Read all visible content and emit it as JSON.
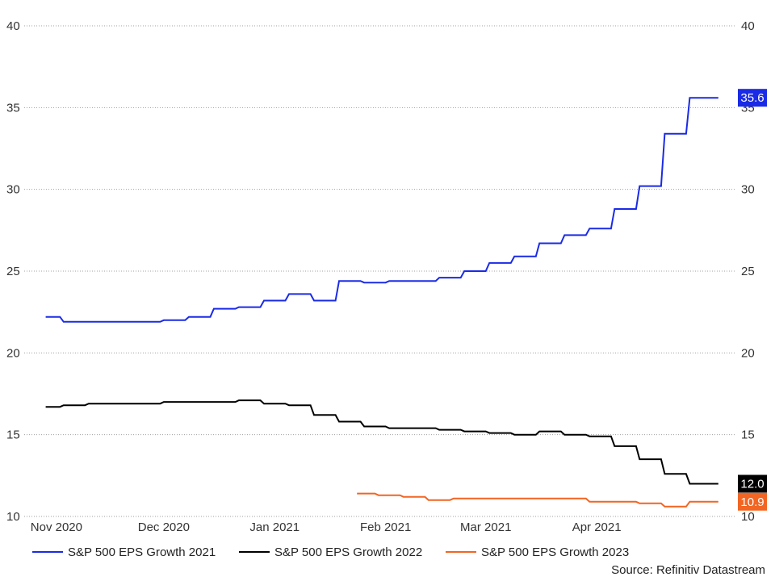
{
  "chart_data": {
    "type": "line",
    "ylim": [
      10,
      40
    ],
    "yticks": [
      10,
      15,
      20,
      25,
      30,
      35,
      40
    ],
    "xlim": [
      "2020-10-23",
      "2021-05-10"
    ],
    "xticks": [
      {
        "date": "2020-11-01",
        "label": "Nov 2020"
      },
      {
        "date": "2020-12-01",
        "label": "Dec 2020"
      },
      {
        "date": "2021-01-01",
        "label": "Jan 2021"
      },
      {
        "date": "2021-02-01",
        "label": "Feb 2021"
      },
      {
        "date": "2021-03-01",
        "label": "Mar 2021"
      },
      {
        "date": "2021-04-01",
        "label": "Apr 2021"
      }
    ],
    "grid": true,
    "legend": "bottom",
    "series": [
      {
        "name": "S&P 500 EPS Growth 2021",
        "color": "#1a2be6",
        "end_label": "35.6",
        "points": [
          [
            "2020-10-29",
            22.2
          ],
          [
            "2020-11-02",
            22.2
          ],
          [
            "2020-11-03",
            21.9
          ],
          [
            "2020-11-09",
            21.9
          ],
          [
            "2020-11-10",
            21.9
          ],
          [
            "2020-11-30",
            21.9
          ],
          [
            "2020-12-01",
            22.0
          ],
          [
            "2020-12-07",
            22.0
          ],
          [
            "2020-12-08",
            22.2
          ],
          [
            "2020-12-14",
            22.2
          ],
          [
            "2020-12-15",
            22.7
          ],
          [
            "2020-12-21",
            22.7
          ],
          [
            "2020-12-22",
            22.8
          ],
          [
            "2020-12-28",
            22.8
          ],
          [
            "2020-12-29",
            23.2
          ],
          [
            "2021-01-04",
            23.2
          ],
          [
            "2021-01-05",
            23.6
          ],
          [
            "2021-01-11",
            23.6
          ],
          [
            "2021-01-12",
            23.2
          ],
          [
            "2021-01-18",
            23.2
          ],
          [
            "2021-01-19",
            24.4
          ],
          [
            "2021-01-25",
            24.4
          ],
          [
            "2021-01-26",
            24.3
          ],
          [
            "2021-02-01",
            24.3
          ],
          [
            "2021-02-02",
            24.4
          ],
          [
            "2021-02-15",
            24.4
          ],
          [
            "2021-02-16",
            24.6
          ],
          [
            "2021-02-22",
            24.6
          ],
          [
            "2021-02-23",
            25.0
          ],
          [
            "2021-03-01",
            25.0
          ],
          [
            "2021-03-02",
            25.5
          ],
          [
            "2021-03-08",
            25.5
          ],
          [
            "2021-03-09",
            25.9
          ],
          [
            "2021-03-15",
            25.9
          ],
          [
            "2021-03-16",
            26.7
          ],
          [
            "2021-03-22",
            26.7
          ],
          [
            "2021-03-23",
            27.2
          ],
          [
            "2021-03-29",
            27.2
          ],
          [
            "2021-03-30",
            27.6
          ],
          [
            "2021-04-05",
            27.6
          ],
          [
            "2021-04-06",
            28.8
          ],
          [
            "2021-04-12",
            28.8
          ],
          [
            "2021-04-13",
            30.2
          ],
          [
            "2021-04-19",
            30.2
          ],
          [
            "2021-04-20",
            33.4
          ],
          [
            "2021-04-26",
            33.4
          ],
          [
            "2021-04-27",
            35.6
          ],
          [
            "2021-05-05",
            35.6
          ]
        ]
      },
      {
        "name": "S&P 500 EPS Growth 2022",
        "color": "#000000",
        "end_label": "12.0",
        "points": [
          [
            "2020-10-29",
            16.7
          ],
          [
            "2020-11-02",
            16.7
          ],
          [
            "2020-11-03",
            16.8
          ],
          [
            "2020-11-09",
            16.8
          ],
          [
            "2020-11-10",
            16.9
          ],
          [
            "2020-11-16",
            16.9
          ],
          [
            "2020-11-17",
            16.9
          ],
          [
            "2020-11-23",
            16.9
          ],
          [
            "2020-11-24",
            16.9
          ],
          [
            "2020-11-30",
            16.9
          ],
          [
            "2020-12-01",
            17.0
          ],
          [
            "2020-12-14",
            17.0
          ],
          [
            "2020-12-15",
            17.0
          ],
          [
            "2020-12-21",
            17.0
          ],
          [
            "2020-12-22",
            17.1
          ],
          [
            "2020-12-28",
            17.1
          ],
          [
            "2020-12-29",
            16.9
          ],
          [
            "2021-01-04",
            16.9
          ],
          [
            "2021-01-05",
            16.8
          ],
          [
            "2021-01-11",
            16.8
          ],
          [
            "2021-01-12",
            16.2
          ],
          [
            "2021-01-18",
            16.2
          ],
          [
            "2021-01-19",
            15.8
          ],
          [
            "2021-01-25",
            15.8
          ],
          [
            "2021-01-26",
            15.5
          ],
          [
            "2021-02-01",
            15.5
          ],
          [
            "2021-02-02",
            15.4
          ],
          [
            "2021-02-15",
            15.4
          ],
          [
            "2021-02-16",
            15.3
          ],
          [
            "2021-02-22",
            15.3
          ],
          [
            "2021-02-23",
            15.2
          ],
          [
            "2021-03-01",
            15.2
          ],
          [
            "2021-03-02",
            15.1
          ],
          [
            "2021-03-08",
            15.1
          ],
          [
            "2021-03-09",
            15.0
          ],
          [
            "2021-03-15",
            15.0
          ],
          [
            "2021-03-16",
            15.2
          ],
          [
            "2021-03-22",
            15.2
          ],
          [
            "2021-03-23",
            15.0
          ],
          [
            "2021-03-29",
            15.0
          ],
          [
            "2021-03-30",
            14.9
          ],
          [
            "2021-04-05",
            14.9
          ],
          [
            "2021-04-06",
            14.3
          ],
          [
            "2021-04-12",
            14.3
          ],
          [
            "2021-04-13",
            13.5
          ],
          [
            "2021-04-19",
            13.5
          ],
          [
            "2021-04-20",
            12.6
          ],
          [
            "2021-04-26",
            12.6
          ],
          [
            "2021-04-27",
            12.0
          ],
          [
            "2021-05-05",
            12.0
          ]
        ]
      },
      {
        "name": "S&P 500 EPS Growth 2023",
        "color": "#f26522",
        "end_label": "10.9",
        "points": [
          [
            "2021-01-24",
            11.4
          ],
          [
            "2021-01-29",
            11.4
          ],
          [
            "2021-01-30",
            11.3
          ],
          [
            "2021-02-05",
            11.3
          ],
          [
            "2021-02-06",
            11.2
          ],
          [
            "2021-02-12",
            11.2
          ],
          [
            "2021-02-13",
            11.0
          ],
          [
            "2021-02-19",
            11.0
          ],
          [
            "2021-02-20",
            11.1
          ],
          [
            "2021-03-08",
            11.1
          ],
          [
            "2021-03-09",
            11.1
          ],
          [
            "2021-03-15",
            11.1
          ],
          [
            "2021-03-16",
            11.1
          ],
          [
            "2021-03-22",
            11.1
          ],
          [
            "2021-03-23",
            11.1
          ],
          [
            "2021-03-29",
            11.1
          ],
          [
            "2021-03-30",
            10.9
          ],
          [
            "2021-04-12",
            10.9
          ],
          [
            "2021-04-13",
            10.8
          ],
          [
            "2021-04-19",
            10.8
          ],
          [
            "2021-04-20",
            10.6
          ],
          [
            "2021-04-26",
            10.6
          ],
          [
            "2021-04-27",
            10.9
          ],
          [
            "2021-05-05",
            10.9
          ]
        ]
      }
    ]
  },
  "source": "Source: Refinitiv Datastream"
}
